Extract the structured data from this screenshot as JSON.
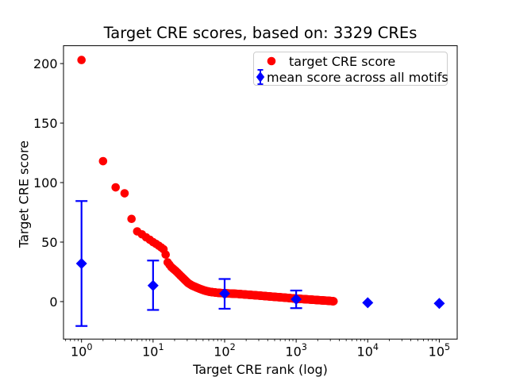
{
  "chart_data": {
    "type": "scatter",
    "title": "Target CRE scores, based on: 3329 CREs",
    "xlabel": "Target CRE rank (log)",
    "ylabel": "Target CRE score",
    "x_scale": "log",
    "y_scale": "linear",
    "xlim": [
      0.56,
      178000
    ],
    "ylim": [
      -31.5,
      215
    ],
    "x_ticks": [
      {
        "value": 1,
        "exponent": "0"
      },
      {
        "value": 10,
        "exponent": "1"
      },
      {
        "value": 100,
        "exponent": "2"
      },
      {
        "value": 1000,
        "exponent": "3"
      },
      {
        "value": 10000,
        "exponent": "4"
      },
      {
        "value": 100000,
        "exponent": "5"
      }
    ],
    "y_ticks": [
      0,
      50,
      100,
      150,
      200
    ],
    "grid": false,
    "n_cres": 3329,
    "legend": {
      "position": "upper right",
      "entries": [
        {
          "label": "target CRE score",
          "marker": "circle",
          "color": "#ff0000"
        },
        {
          "label": "mean score across all motifs",
          "marker": "diamond-with-errorbar",
          "color": "#0000ff"
        }
      ]
    },
    "series": [
      {
        "name": "target CRE score",
        "marker": "circle",
        "color": "#ff0000",
        "n_points": 3329,
        "anchors": [
          [
            1,
            203
          ],
          [
            2,
            118
          ],
          [
            3,
            96
          ],
          [
            4,
            91
          ],
          [
            5,
            69.5
          ],
          [
            6,
            59
          ],
          [
            7,
            56.5
          ],
          [
            8,
            54
          ],
          [
            9,
            52
          ],
          [
            10,
            50
          ],
          [
            11,
            48.5
          ],
          [
            12,
            47
          ],
          [
            13,
            45.5
          ],
          [
            14,
            44
          ],
          [
            15,
            39.5
          ],
          [
            16,
            33
          ],
          [
            18,
            29
          ],
          [
            21,
            25.5
          ],
          [
            24,
            22
          ],
          [
            27,
            19
          ],
          [
            31,
            15.5
          ],
          [
            35,
            13.5
          ],
          [
            40,
            12
          ],
          [
            46,
            10.5
          ],
          [
            53,
            9.2
          ],
          [
            62,
            8.2
          ],
          [
            80,
            7.4
          ],
          [
            100,
            7
          ],
          [
            150,
            6.5
          ],
          [
            200,
            5.9
          ],
          [
            300,
            5.1
          ],
          [
            450,
            4.2
          ],
          [
            700,
            3.3
          ],
          [
            1000,
            2.5
          ],
          [
            1500,
            1.8
          ],
          [
            2200,
            1.1
          ],
          [
            2800,
            0.7
          ],
          [
            3329,
            0.3
          ]
        ]
      },
      {
        "name": "mean score across all motifs",
        "marker": "diamond",
        "color": "#0000ff",
        "points": [
          {
            "x": 1,
            "y": 32,
            "err_lo": -20.5,
            "err_hi": 84.5
          },
          {
            "x": 10,
            "y": 13.5,
            "err_lo": -7,
            "err_hi": 34.5
          },
          {
            "x": 100,
            "y": 6.7,
            "err_lo": -6,
            "err_hi": 19
          },
          {
            "x": 1000,
            "y": 2,
            "err_lo": -5.5,
            "err_hi": 9.3
          },
          {
            "x": 10000,
            "y": -0.9,
            "err_lo": null,
            "err_hi": null
          },
          {
            "x": 100000,
            "y": -1.5,
            "err_lo": null,
            "err_hi": null
          }
        ]
      }
    ]
  }
}
